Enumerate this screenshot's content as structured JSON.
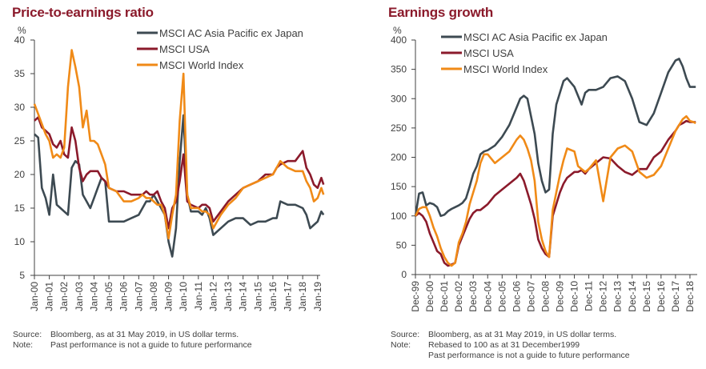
{
  "chart_data": [
    {
      "type": "line",
      "title": "Price-to-earnings ratio",
      "ylabel": "%",
      "xlabel": "",
      "ylim": [
        5,
        40
      ],
      "yticks": [
        5,
        10,
        15,
        20,
        25,
        30,
        35,
        40
      ],
      "xlim": [
        0,
        19.4
      ],
      "x_unit": "years since Jan-00",
      "xtick_labels": [
        "Jan-00",
        "Jan-01",
        "Jan-02",
        "Jan-03",
        "Jan-04",
        "Jan-05",
        "Jan-06",
        "Jan-07",
        "Jan-08",
        "Jan-09",
        "Jan-10",
        "Jan-11",
        "Jan-12",
        "Jan-13",
        "Jan-14",
        "Jan-15",
        "Jan-16",
        "Jan-17",
        "Jan-18",
        "Jan-19"
      ],
      "grid": false,
      "legend": "top-center",
      "x": [
        0,
        0.25,
        0.5,
        0.75,
        1,
        1.25,
        1.5,
        1.75,
        2,
        2.25,
        2.5,
        2.75,
        3,
        3.25,
        3.5,
        3.75,
        4,
        4.25,
        4.5,
        4.75,
        5,
        5.5,
        6,
        6.5,
        7,
        7.25,
        7.5,
        7.75,
        8,
        8.25,
        8.5,
        8.75,
        9,
        9.25,
        9.5,
        9.75,
        10,
        10.25,
        10.5,
        11,
        11.25,
        11.5,
        11.75,
        12,
        12.5,
        13,
        13.5,
        14,
        14.5,
        15,
        15.5,
        16,
        16.25,
        16.5,
        17,
        17.5,
        18,
        18.25,
        18.5,
        18.75,
        19,
        19.25,
        19.4
      ],
      "series": [
        {
          "name": "MSCI AC Asia Pacific ex Japan",
          "color": "#3d4a52",
          "values": [
            26,
            25.5,
            18,
            16.5,
            14,
            20,
            15.5,
            15,
            14.5,
            14,
            21,
            22,
            21.5,
            17,
            16,
            15,
            16.5,
            18,
            19.5,
            19,
            13,
            13,
            13,
            13.5,
            14,
            15,
            16,
            16,
            17,
            16,
            15,
            14,
            10,
            7.8,
            12,
            22,
            28.8,
            17,
            14.5,
            14.5,
            14,
            15,
            13.5,
            11,
            12,
            13,
            13.5,
            13.5,
            12.5,
            13,
            13,
            13.5,
            13.5,
            16,
            15.5,
            15.5,
            15,
            14,
            12,
            12.5,
            13,
            14.5,
            14
          ]
        },
        {
          "name": "MSCI USA",
          "color": "#8b1a2b",
          "values": [
            28,
            28.5,
            27,
            26.5,
            26,
            24.5,
            24,
            25,
            23,
            22.5,
            27,
            25,
            21,
            19,
            20,
            20.5,
            20.5,
            20.5,
            19.5,
            19,
            18,
            17.5,
            17.5,
            17,
            17,
            17,
            17.5,
            17,
            17,
            17.5,
            16,
            15,
            12,
            15,
            16,
            19,
            23,
            16,
            15.5,
            15,
            15.5,
            15.5,
            15,
            13,
            14.5,
            16,
            17,
            18,
            18.5,
            19,
            20,
            20,
            21,
            21.5,
            22,
            22,
            23.5,
            21,
            20,
            18.5,
            18,
            19.5,
            18.5
          ]
        },
        {
          "name": "MSCI World Index",
          "color": "#f08a17",
          "values": [
            30.5,
            29,
            27.5,
            26,
            25,
            22.5,
            23,
            22.5,
            24,
            33,
            38.5,
            36,
            33,
            27,
            29.5,
            25,
            25,
            24.5,
            23,
            21.5,
            18,
            17.5,
            16,
            16,
            16.5,
            17,
            16.5,
            16.5,
            16,
            15.5,
            15.5,
            14,
            10.5,
            14,
            17,
            28,
            35,
            17,
            15,
            15,
            14.5,
            14.5,
            14,
            12,
            14,
            15.5,
            16.5,
            18,
            18.5,
            19,
            19.5,
            20,
            21,
            22,
            21,
            20.5,
            20.5,
            19,
            18,
            16,
            16.5,
            18,
            17
          ]
        }
      ]
    },
    {
      "type": "line",
      "title": "Earnings growth",
      "ylabel": "%",
      "xlabel": "",
      "ylim": [
        0,
        400
      ],
      "yticks": [
        0,
        50,
        100,
        150,
        200,
        250,
        300,
        350,
        400
      ],
      "xlim": [
        0,
        19.4
      ],
      "x_unit": "years since Dec-99",
      "xtick_labels": [
        "Dec-99",
        "Dec-00",
        "Dec-01",
        "Dec-02",
        "Dec-03",
        "Dec-04",
        "Dec-05",
        "Dec-06",
        "Dec-07",
        "Dec-08",
        "Dec-09",
        "Dec-10",
        "Dec-11",
        "Dec-12",
        "Dec-13",
        "Dec-14",
        "Dec-15",
        "Dec-16",
        "Dec-17",
        "Dec-18"
      ],
      "grid": false,
      "legend": "top-center",
      "x": [
        0,
        0.25,
        0.5,
        0.75,
        1,
        1.25,
        1.5,
        1.75,
        2,
        2.25,
        2.5,
        2.75,
        3,
        3.25,
        3.5,
        3.75,
        4,
        4.25,
        4.5,
        4.75,
        5,
        5.5,
        6,
        6.5,
        7,
        7.25,
        7.5,
        7.75,
        8,
        8.25,
        8.5,
        8.75,
        9,
        9.25,
        9.5,
        9.75,
        10,
        10.25,
        10.5,
        11,
        11.25,
        11.5,
        11.75,
        12,
        12.5,
        13,
        13.5,
        14,
        14.5,
        15,
        15.5,
        16,
        16.5,
        17,
        17.5,
        18,
        18.25,
        18.5,
        18.75,
        19,
        19.25,
        19.4
      ],
      "series": [
        {
          "name": "MSCI AC Asia Pacific ex Japan",
          "color": "#3d4a52",
          "values": [
            100,
            138,
            140,
            118,
            122,
            120,
            115,
            100,
            102,
            108,
            112,
            115,
            118,
            122,
            130,
            150,
            172,
            185,
            205,
            210,
            212,
            220,
            235,
            255,
            285,
            300,
            305,
            300,
            270,
            240,
            190,
            160,
            140,
            145,
            240,
            290,
            310,
            330,
            335,
            320,
            305,
            290,
            310,
            315,
            315,
            320,
            335,
            338,
            330,
            300,
            260,
            255,
            275,
            310,
            345,
            365,
            368,
            355,
            335,
            320,
            320,
            320
          ]
        },
        {
          "name": "MSCI USA",
          "color": "#8b1a2b",
          "values": [
            100,
            105,
            100,
            90,
            70,
            55,
            40,
            35,
            20,
            15,
            17,
            20,
            50,
            65,
            80,
            95,
            105,
            110,
            110,
            115,
            120,
            135,
            145,
            155,
            165,
            172,
            160,
            140,
            120,
            95,
            60,
            45,
            35,
            30,
            100,
            120,
            140,
            155,
            165,
            175,
            175,
            178,
            172,
            180,
            190,
            200,
            198,
            185,
            175,
            170,
            180,
            180,
            200,
            210,
            230,
            245,
            255,
            258,
            262,
            260,
            260,
            260
          ]
        },
        {
          "name": "MSCI World Index",
          "color": "#f08a17",
          "values": [
            100,
            112,
            115,
            115,
            100,
            80,
            65,
            45,
            30,
            20,
            15,
            20,
            55,
            70,
            90,
            120,
            140,
            160,
            190,
            205,
            205,
            190,
            200,
            210,
            230,
            237,
            230,
            215,
            195,
            160,
            90,
            60,
            40,
            30,
            110,
            140,
            170,
            195,
            215,
            210,
            185,
            180,
            175,
            180,
            195,
            125,
            200,
            215,
            220,
            210,
            175,
            165,
            170,
            185,
            215,
            245,
            255,
            265,
            270,
            262,
            260,
            258
          ]
        }
      ]
    }
  ],
  "left": {
    "title": "Price-to-earnings ratio",
    "y_unit": "%",
    "notes": [
      {
        "key": "Source:",
        "text": "Bloomberg, as at 31 May 2019, in US dollar terms."
      },
      {
        "key": "Note:",
        "text": "Past performance is not a guide to future performance"
      }
    ]
  },
  "right": {
    "title": "Earnings growth",
    "y_unit": "%",
    "notes": [
      {
        "key": "Source:",
        "text": "Bloomberg, as at 31 May 2019, in US dollar terms."
      },
      {
        "key": "Note:",
        "text": "Rebased to 100 as at 31 December1999"
      },
      {
        "key": "",
        "text": "Past performance is not a guide to future performance"
      }
    ]
  }
}
